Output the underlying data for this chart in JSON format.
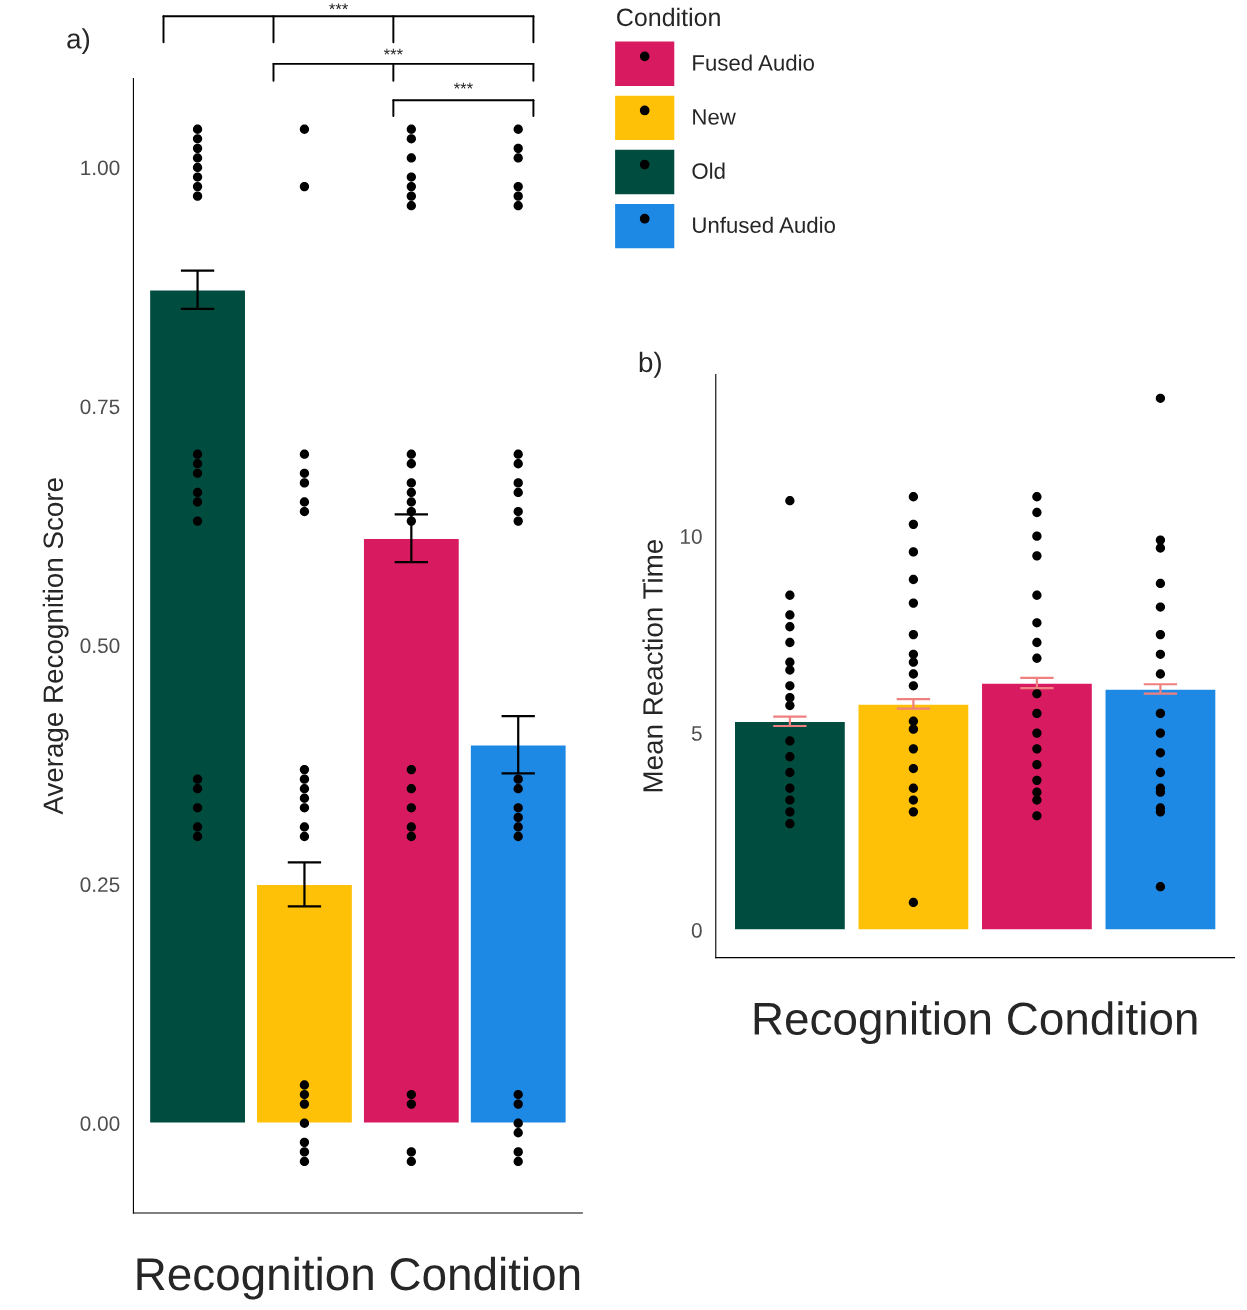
{
  "chart_data": [
    {
      "type": "bar",
      "title": "a)",
      "xlabel": "Recognition Condition",
      "ylabel": "Average Recognition Score",
      "legend_title": "Condition",
      "legend": "right",
      "tick_labels": "y",
      "grid": false,
      "categories": [
        null,
        null,
        null,
        null
      ],
      "ylim": [
        -0.094,
        1.093
      ],
      "yticks": [
        {
          "value": 0,
          "label": "0.00"
        },
        {
          "value": 0.25,
          "label": "0.25"
        },
        {
          "value": 0.5,
          "label": "0.50"
        },
        {
          "value": 0.75,
          "label": "0.75"
        },
        {
          "value": 1,
          "label": "1.00"
        }
      ],
      "annotations": [
        "***",
        "***",
        "***"
      ],
      "series": [
        {
          "name": "Fused Audio",
          "color": "#d81b60",
          "values": [
            null,
            null,
            0.612,
            null
          ],
          "errors": [
            null,
            null,
            0.025,
            null
          ]
        },
        {
          "name": "New",
          "color": "#ffc107",
          "values": [
            null,
            0.25,
            null,
            null
          ],
          "errors": [
            null,
            0.023,
            null,
            null
          ]
        },
        {
          "name": "Old",
          "color": "#004d40",
          "values": [
            0.872,
            null,
            null,
            null
          ],
          "errors": [
            0.02,
            null,
            null,
            null
          ]
        },
        {
          "name": "Unfused Audio",
          "color": "#1e88e5",
          "values": [
            null,
            null,
            null,
            0.396
          ],
          "errors": [
            null,
            null,
            null,
            0.03
          ]
        },
        {
          "type": "scatter",
          "color": "#000000",
          "marker": "circle",
          "values": [
            1.03,
            1.04,
            1.04,
            0.96
          ]
        },
        {
          "type": "scatter",
          "color": "#000000",
          "marker": "circle",
          "values": [
            1.0,
            0.98,
            0.98,
            1.01
          ]
        },
        {
          "type": "scatter",
          "color": "#000000",
          "marker": "circle",
          "values": [
            1.02,
            null,
            1.01,
            1.04
          ]
        },
        {
          "type": "scatter",
          "color": "#000000",
          "marker": "circle",
          "values": [
            0.98,
            0.64,
            1.03,
            0.97
          ]
        },
        {
          "type": "scatter",
          "color": "#000000",
          "marker": "circle",
          "values": [
            1.04,
            0.7,
            0.99,
            0.98
          ]
        },
        {
          "type": "scatter",
          "color": "#000000",
          "marker": "circle",
          "values": [
            0.97,
            0.67,
            0.96,
            1.02
          ]
        },
        {
          "type": "scatter",
          "color": "#000000",
          "marker": "circle",
          "values": [
            0.99,
            0.68,
            0.97,
            0.64
          ]
        },
        {
          "type": "scatter",
          "color": "#000000",
          "marker": "circle",
          "values": [
            1.01,
            null,
            0.7,
            0.69
          ]
        },
        {
          "type": "scatter",
          "color": "#000000",
          "marker": "circle",
          "values": [
            null,
            0.65,
            0.64,
            0.66
          ]
        },
        {
          "type": "scatter",
          "color": "#000000",
          "marker": "circle",
          "values": [
            null,
            0.37,
            0.67,
            0.7
          ]
        },
        {
          "type": "scatter",
          "color": "#000000",
          "marker": "circle",
          "values": [
            null,
            0.33,
            0.69,
            0.63
          ]
        },
        {
          "type": "scatter",
          "color": "#000000",
          "marker": "circle",
          "values": [
            0.65,
            0.35,
            0.63,
            0.67
          ]
        },
        {
          "type": "scatter",
          "color": "#000000",
          "marker": "circle",
          "values": [
            0.68,
            0.31,
            null,
            0.3
          ]
        },
        {
          "type": "scatter",
          "color": "#000000",
          "marker": "circle",
          "values": [
            0.7,
            0.36,
            0.65,
            0.36
          ]
        },
        {
          "type": "scatter",
          "color": "#000000",
          "marker": "circle",
          "values": [
            0.63,
            0.34,
            0.66,
            0.33
          ]
        },
        {
          "type": "scatter",
          "color": "#000000",
          "marker": "circle",
          "values": [
            0.66,
            0.3,
            0.33,
            0.31
          ]
        },
        {
          "type": "scatter",
          "color": "#000000",
          "marker": "circle",
          "values": [
            0.69,
            null,
            0.35,
            0.35
          ]
        },
        {
          "type": "scatter",
          "color": "#000000",
          "marker": "circle",
          "values": [
            null,
            0.02,
            0.31,
            0.32
          ]
        },
        {
          "type": "scatter",
          "color": "#000000",
          "marker": "circle",
          "values": [
            0.36,
            -0.03,
            0.37,
            -0.04
          ]
        },
        {
          "type": "scatter",
          "color": "#000000",
          "marker": "circle",
          "values": [
            0.35,
            0.0,
            0.3,
            0.02
          ]
        },
        {
          "type": "scatter",
          "color": "#000000",
          "marker": "circle",
          "values": [
            0.31,
            -0.04,
            null,
            -0.03
          ]
        },
        {
          "type": "scatter",
          "color": "#000000",
          "marker": "circle",
          "values": [
            0.3,
            0.03,
            -0.03,
            0.03
          ]
        },
        {
          "type": "scatter",
          "color": "#000000",
          "marker": "circle",
          "values": [
            0.33,
            -0.02,
            0.03,
            -0.01
          ]
        },
        {
          "type": "scatter",
          "color": "#000000",
          "marker": "circle",
          "values": [
            null,
            0.04,
            -0.04,
            0.0
          ]
        },
        {
          "type": "scatter",
          "color": "#000000",
          "marker": "circle",
          "values": [
            null,
            null,
            0.02,
            null
          ]
        }
      ]
    },
    {
      "type": "bar",
      "title": "b)",
      "xlabel": "Recognition Condition",
      "ylabel": "Mean Reaction Time",
      "tick_labels": "y",
      "grid": false,
      "categories": [
        null,
        null,
        null,
        null
      ],
      "ylim": [
        -0.7,
        14.1
      ],
      "yticks": [
        0,
        5,
        10
      ],
      "series": [
        {
          "colors": [
            "#004d40",
            "#ffc107",
            "#d81b60",
            "#1e88e5"
          ],
          "values": [
            5.3,
            5.74,
            6.27,
            6.12
          ],
          "errors": [
            0.12,
            0.12,
            0.13,
            0.12
          ]
        },
        {
          "type": "scatter",
          "color": "#000000",
          "marker": "circle",
          "values": [
            10.9,
            11.0,
            11.0,
            13.5
          ]
        },
        {
          "type": "scatter",
          "color": "#000000",
          "marker": "circle",
          "values": [
            8.5,
            10.3,
            10.6,
            9.9
          ]
        },
        {
          "type": "scatter",
          "color": "#000000",
          "marker": "circle",
          "values": [
            8.0,
            null,
            10.0,
            9.7
          ]
        },
        {
          "type": "scatter",
          "color": "#000000",
          "marker": "circle",
          "values": [
            7.3,
            9.6,
            9.5,
            null
          ]
        },
        {
          "type": "scatter",
          "color": "#000000",
          "marker": "circle",
          "values": [
            6.8,
            8.9,
            8.5,
            8.8
          ]
        },
        {
          "type": "scatter",
          "color": "#000000",
          "marker": "circle",
          "values": [
            6.2,
            8.3,
            7.8,
            8.2
          ]
        },
        {
          "type": "scatter",
          "color": "#000000",
          "marker": "circle",
          "values": [
            5.9,
            7.5,
            7.3,
            7.5
          ]
        },
        {
          "type": "scatter",
          "color": "#000000",
          "marker": "circle",
          "values": [
            5.7,
            7.0,
            6.9,
            7.0
          ]
        },
        {
          "type": "scatter",
          "color": "#000000",
          "marker": "circle",
          "values": [
            null,
            6.5,
            null,
            6.5
          ]
        },
        {
          "type": "scatter",
          "color": "#000000",
          "marker": "circle",
          "values": [
            4.8,
            6.2,
            6.0,
            null
          ]
        },
        {
          "type": "scatter",
          "color": "#000000",
          "marker": "circle",
          "values": [
            4.4,
            5.3,
            5.5,
            5.5
          ]
        },
        {
          "type": "scatter",
          "color": "#000000",
          "marker": "circle",
          "values": [
            4.0,
            5.1,
            5.0,
            5.0
          ]
        },
        {
          "type": "scatter",
          "color": "#000000",
          "marker": "circle",
          "values": [
            3.6,
            4.6,
            4.6,
            4.5
          ]
        },
        {
          "type": "scatter",
          "color": "#000000",
          "marker": "circle",
          "values": [
            3.3,
            4.1,
            4.2,
            4.0
          ]
        },
        {
          "type": "scatter",
          "color": "#000000",
          "marker": "circle",
          "values": [
            3.0,
            3.6,
            3.8,
            3.6
          ]
        },
        {
          "type": "scatter",
          "color": "#000000",
          "marker": "circle",
          "values": [
            2.7,
            3.0,
            3.3,
            3.1
          ]
        },
        {
          "type": "scatter",
          "color": "#000000",
          "marker": "circle",
          "values": [
            null,
            3.3,
            2.9,
            3.0
          ]
        },
        {
          "type": "scatter",
          "color": "#000000",
          "marker": "circle",
          "values": [
            6.6,
            0.7,
            null,
            1.1
          ]
        },
        {
          "type": "scatter",
          "color": "#000000",
          "marker": "circle",
          "values": [
            7.7,
            6.8,
            3.5,
            3.5
          ]
        }
      ]
    }
  ]
}
